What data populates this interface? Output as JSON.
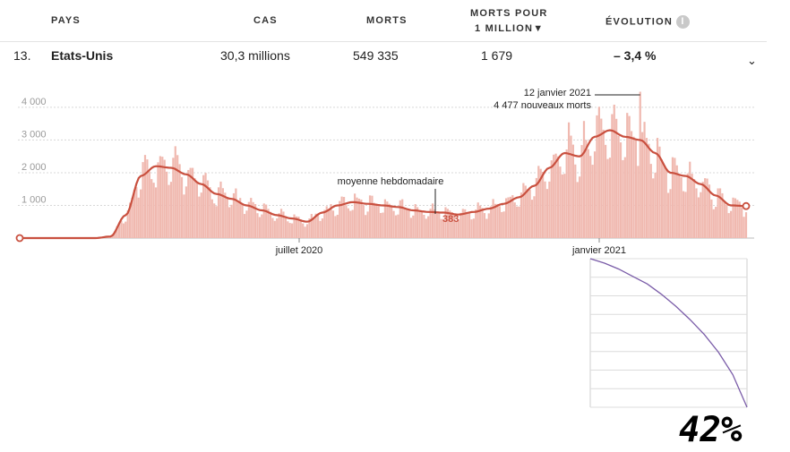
{
  "table": {
    "headers": {
      "pays": "PAYS",
      "cas": "CAS",
      "morts": "MORTS",
      "morts_pour_1": "MORTS POUR",
      "morts_pour_2": "1 MILLION▼",
      "evolution": "ÉVOLUTION",
      "info_icon": "i"
    },
    "row": {
      "rank": "13.",
      "country": "Etats-Unis",
      "cases": "30,3 millions",
      "deaths": "549 335",
      "deaths_per_million": "1 679",
      "evolution": "– 3,4 %"
    },
    "chevron": "⌄"
  },
  "chart_data": [
    {
      "type": "bar",
      "title": "",
      "xlabel": "",
      "ylabel": "",
      "ylim": [
        0,
        4600
      ],
      "yticks": [
        1000,
        2000,
        3000,
        4000
      ],
      "ytick_labels": [
        "1 000",
        "2 000",
        "3 000",
        "4 000"
      ],
      "xtick_labels": [
        "juillet 2020",
        "janvier 2021"
      ],
      "grid": true,
      "bar_color": "#f0b9b0",
      "line_color": "#c9503f",
      "daily_deaths_weekly_anchors": [
        [
          0,
          0
        ],
        [
          7,
          0
        ],
        [
          14,
          0
        ],
        [
          21,
          0
        ],
        [
          28,
          0
        ],
        [
          35,
          0
        ],
        [
          42,
          50
        ],
        [
          49,
          700
        ],
        [
          56,
          1900
        ],
        [
          63,
          2200
        ],
        [
          70,
          2150
        ],
        [
          77,
          1950
        ],
        [
          84,
          1650
        ],
        [
          91,
          1350
        ],
        [
          98,
          1200
        ],
        [
          105,
          1000
        ],
        [
          112,
          850
        ],
        [
          119,
          700
        ],
        [
          126,
          600
        ],
        [
          133,
          500
        ],
        [
          140,
          780
        ],
        [
          147,
          1000
        ],
        [
          154,
          1100
        ],
        [
          161,
          1050
        ],
        [
          168,
          1000
        ],
        [
          175,
          950
        ],
        [
          182,
          850
        ],
        [
          189,
          800
        ],
        [
          196,
          780
        ],
        [
          203,
          720
        ],
        [
          210,
          800
        ],
        [
          217,
          900
        ],
        [
          224,
          1050
        ],
        [
          231,
          1250
        ],
        [
          238,
          1600
        ],
        [
          245,
          2150
        ],
        [
          252,
          2600
        ],
        [
          259,
          2500
        ],
        [
          266,
          3100
        ],
        [
          273,
          3300
        ],
        [
          280,
          3100
        ],
        [
          287,
          3000
        ],
        [
          294,
          2600
        ],
        [
          301,
          2000
        ],
        [
          308,
          1900
        ],
        [
          315,
          1650
        ],
        [
          322,
          1300
        ],
        [
          329,
          1000
        ],
        [
          336,
          980
        ]
      ],
      "weekly_average_label": "moyenne hebdomadaire",
      "weekly_average_value": "383",
      "peak_annotation": [
        "12 janvier 2021",
        "4 477 nouveaux morts"
      ],
      "peak_value": 4477,
      "peak_day": 287
    },
    {
      "type": "line",
      "title": "",
      "xlabel": "",
      "ylabel": "",
      "line_color": "#7a5ca8",
      "values": [
        1.0,
        0.97,
        0.93,
        0.88,
        0.83,
        0.76,
        0.68,
        0.59,
        0.49,
        0.37,
        0.22,
        0.0
      ],
      "ylim": [
        0,
        1
      ],
      "grid": true
    }
  ],
  "overlay_text": "42%"
}
